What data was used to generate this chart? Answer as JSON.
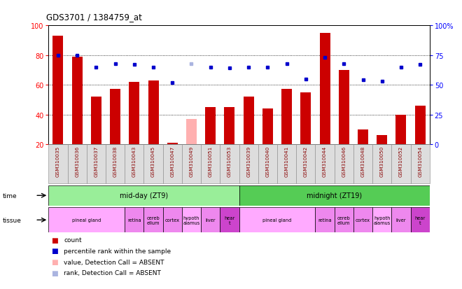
{
  "title": "GDS3701 / 1384759_at",
  "samples": [
    "GSM310035",
    "GSM310036",
    "GSM310037",
    "GSM310038",
    "GSM310043",
    "GSM310045",
    "GSM310047",
    "GSM310049",
    "GSM310051",
    "GSM310053",
    "GSM310039",
    "GSM310040",
    "GSM310041",
    "GSM310042",
    "GSM310044",
    "GSM310046",
    "GSM310048",
    "GSM310050",
    "GSM310052",
    "GSM310054"
  ],
  "bar_values": [
    93,
    79,
    52,
    57,
    62,
    63,
    21,
    null,
    45,
    45,
    52,
    44,
    57,
    55,
    95,
    70,
    30,
    26,
    40,
    46
  ],
  "bar_absent": [
    null,
    null,
    null,
    null,
    null,
    null,
    null,
    37,
    null,
    null,
    null,
    null,
    null,
    null,
    null,
    null,
    null,
    null,
    null,
    null
  ],
  "dot_values": [
    75,
    75,
    65,
    68,
    67,
    65,
    52,
    null,
    65,
    64,
    65,
    65,
    68,
    55,
    73,
    68,
    54,
    53,
    65,
    67
  ],
  "dot_absent": [
    null,
    null,
    null,
    null,
    null,
    null,
    null,
    68,
    null,
    null,
    null,
    null,
    null,
    null,
    null,
    null,
    null,
    null,
    null,
    null
  ],
  "ylim_left": [
    20,
    100
  ],
  "ylim_right": [
    0,
    100
  ],
  "bar_color": "#cc0000",
  "bar_absent_color": "#ffb0b0",
  "dot_color": "#0000cc",
  "dot_absent_color": "#aab4e0",
  "yticks_left": [
    20,
    40,
    60,
    80,
    100
  ],
  "yticks_right": [
    0,
    25,
    50,
    75,
    100
  ],
  "time_blocks": [
    {
      "label": "mid-day (ZT9)",
      "start": 0,
      "end": 10,
      "color": "#99ee99"
    },
    {
      "label": "midnight (ZT19)",
      "start": 10,
      "end": 20,
      "color": "#55cc55"
    }
  ],
  "tissue_blocks": [
    {
      "label": "pineal gland",
      "start": 0,
      "end": 4,
      "color": "#ffaaff"
    },
    {
      "label": "retina",
      "start": 4,
      "end": 5,
      "color": "#ee88ee"
    },
    {
      "label": "cereb\nellum",
      "start": 5,
      "end": 6,
      "color": "#ee88ee"
    },
    {
      "label": "cortex",
      "start": 6,
      "end": 7,
      "color": "#ee88ee"
    },
    {
      "label": "hypoth\nalamus",
      "start": 7,
      "end": 8,
      "color": "#ffaaff"
    },
    {
      "label": "liver",
      "start": 8,
      "end": 9,
      "color": "#ee88ee"
    },
    {
      "label": "hear\nt",
      "start": 9,
      "end": 10,
      "color": "#cc44cc"
    },
    {
      "label": "pineal gland",
      "start": 10,
      "end": 14,
      "color": "#ffaaff"
    },
    {
      "label": "retina",
      "start": 14,
      "end": 15,
      "color": "#ee88ee"
    },
    {
      "label": "cereb\nellum",
      "start": 15,
      "end": 16,
      "color": "#ee88ee"
    },
    {
      "label": "cortex",
      "start": 16,
      "end": 17,
      "color": "#ee88ee"
    },
    {
      "label": "hypoth\nalamus",
      "start": 17,
      "end": 18,
      "color": "#ffaaff"
    },
    {
      "label": "liver",
      "start": 18,
      "end": 19,
      "color": "#ee88ee"
    },
    {
      "label": "hear\nt",
      "start": 19,
      "end": 20,
      "color": "#cc44cc"
    }
  ],
  "legend_items": [
    {
      "color": "#cc0000",
      "label": "count"
    },
    {
      "color": "#0000cc",
      "label": "percentile rank within the sample"
    },
    {
      "color": "#ffb0b0",
      "label": "value, Detection Call = ABSENT"
    },
    {
      "color": "#aab4e0",
      "label": "rank, Detection Call = ABSENT"
    }
  ]
}
